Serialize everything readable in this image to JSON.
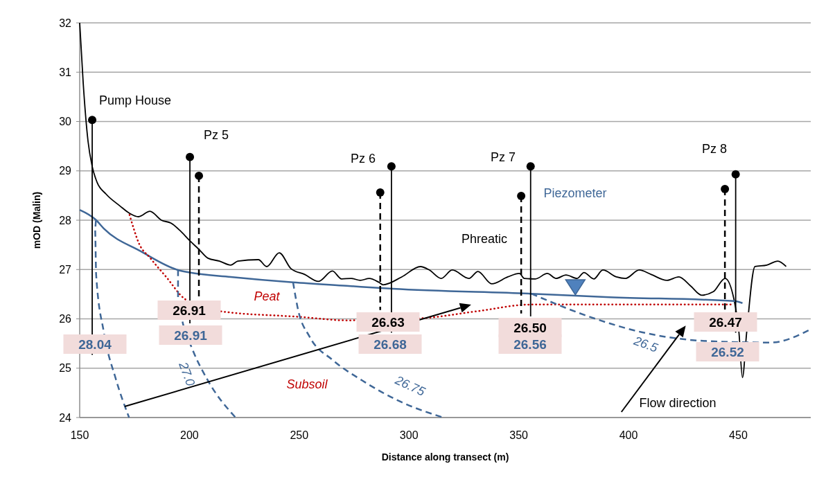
{
  "chart_data": {
    "type": "line",
    "xlabel": "Distance along transect (m)",
    "ylabel": "mOD (Malin)",
    "xlim": [
      150,
      483
    ],
    "xticks": [
      150,
      200,
      250,
      300,
      350,
      400,
      450
    ],
    "ylim": [
      24,
      32
    ],
    "yticks": [
      24,
      25,
      26,
      27,
      28,
      29,
      30,
      31,
      32
    ],
    "grid": "y",
    "series": [
      {
        "color": "#000000",
        "line_style": "solid",
        "marker": "none",
        "x": [
          150,
          151.6,
          153.8,
          155.7,
          157.9,
          162,
          168.3,
          172.7,
          176.8,
          182,
          187.2,
          191.6,
          195.7,
          200,
          204.3,
          208.4,
          213.7,
          218.8,
          222,
          231.4,
          235.2,
          240.9,
          246.2,
          252.5,
          258.8,
          265.1,
          269.3,
          273.7,
          277.8,
          281.9,
          286.3,
          288.2,
          296.7,
          305.2,
          309.3,
          314.7,
          319.7,
          327.3,
          331.4,
          337.7,
          345,
          350.3,
          352.5,
          357.6,
          363,
          367,
          371.5,
          376.6,
          379.7,
          384.2,
          388.3,
          394.5,
          398.6,
          404.9,
          410.3,
          417.5,
          422.9,
          428.2,
          433.3,
          438.6,
          444,
          448.1,
          450.3,
          451.9,
          453.8,
          457.6,
          463,
          468,
          471.8
        ],
        "values": [
          32,
          30.78,
          29.6,
          29.09,
          28.77,
          28.53,
          28.29,
          28.14,
          28.07,
          28.18,
          28.0,
          27.94,
          27.79,
          27.59,
          27.41,
          27.23,
          27.17,
          27.09,
          27.17,
          27.2,
          27.06,
          27.34,
          27.02,
          26.9,
          26.76,
          26.97,
          26.81,
          26.82,
          26.78,
          26.82,
          26.74,
          26.69,
          26.85,
          27.06,
          26.99,
          26.82,
          26.99,
          26.82,
          26.96,
          26.71,
          26.85,
          26.92,
          26.82,
          26.81,
          26.92,
          26.82,
          26.89,
          26.82,
          26.94,
          26.81,
          26.99,
          26.85,
          26.82,
          26.99,
          26.9,
          26.78,
          26.85,
          26.67,
          26.48,
          26.55,
          26.82,
          26.38,
          25.72,
          24.81,
          25.72,
          27.06,
          27.09,
          27.17,
          27.06
        ]
      },
      {
        "color": "#3f6797",
        "line_style": "solid",
        "marker": "none",
        "x": [
          150,
          157.3,
          161,
          177.8,
          194.8,
          200,
          218.8,
          247.2,
          271.5,
          292.6,
          355.7,
          391.3,
          448,
          451.9
        ],
        "values": [
          28.21,
          28.01,
          27.83,
          27.37,
          26.99,
          26.94,
          26.85,
          26.74,
          26.67,
          26.61,
          26.51,
          26.44,
          26.36,
          26.32
        ]
      },
      {
        "color": "#c00000",
        "line_style": "dotted",
        "marker": "none",
        "x": [
          172.7,
          174.6,
          176.8,
          182.2,
          189.4,
          198,
          214.7,
          250.3,
          271.5,
          305.2,
          330.4,
          355.7,
          391.3,
          448.1
        ],
        "values": [
          28.11,
          27.83,
          27.55,
          27.23,
          26.85,
          26.4,
          26.15,
          26.04,
          25.97,
          26.01,
          26.15,
          26.29,
          26.29,
          26.29
        ]
      },
      {
        "color": "#3f6797",
        "line_style": "dashed",
        "marker": "none",
        "x": [
          157.4,
          157,
          157.5,
          161,
          166.4,
          172.5
        ],
        "values": [
          28.0,
          27.83,
          26.89,
          25.73,
          24.79,
          24.0
        ]
      },
      {
        "color": "#3f6797",
        "line_style": "dashed",
        "marker": "none",
        "x": [
          194.8,
          194.8,
          196.7,
          201.1,
          208.4,
          221
        ],
        "values": [
          26.99,
          26.43,
          25.97,
          25.41,
          24.75,
          24.0
        ]
      },
      {
        "color": "#3f6797",
        "line_style": "dashed",
        "marker": "none",
        "x": [
          247.2,
          249.4,
          254.7,
          265.1,
          278.7,
          295.7,
          315.6
        ],
        "values": [
          26.74,
          26.2,
          25.64,
          25.17,
          24.75,
          24.33,
          24.0
        ]
      },
      {
        "color": "#3f6797",
        "line_style": "dashed",
        "marker": "none",
        "x": [
          355.7,
          385,
          406,
          435.5,
          464.8,
          483
        ],
        "values": [
          26.51,
          26.0,
          25.73,
          25.55,
          25.52,
          25.79
        ]
      },
      {
        "color": "#000000",
        "line_style": "solid",
        "marker": "none",
        "x": [
          155.7,
          155.7
        ],
        "values": [
          30.03,
          25.27
        ]
      },
      {
        "color": "#000000",
        "line_style": "solid",
        "marker": "none",
        "x": [
          200.2,
          200.2
        ],
        "values": [
          29.28,
          25.91
        ]
      },
      {
        "color": "#000000",
        "line_style": "dashed",
        "marker": "none",
        "x": [
          204.3,
          204.3
        ],
        "values": [
          28.9,
          26.43
        ]
      },
      {
        "color": "#000000",
        "line_style": "dashed",
        "marker": "none",
        "x": [
          286.9,
          286.9
        ],
        "values": [
          28.56,
          26.18
        ]
      },
      {
        "color": "#000000",
        "line_style": "solid",
        "marker": "none",
        "x": [
          292,
          292
        ],
        "values": [
          29.09,
          25.72
        ]
      },
      {
        "color": "#000000",
        "line_style": "dashed",
        "marker": "none",
        "x": [
          351.1,
          351.1
        ],
        "values": [
          28.49,
          26.11
        ]
      },
      {
        "color": "#000000",
        "line_style": "solid",
        "marker": "none",
        "x": [
          355.4,
          355.4
        ],
        "values": [
          29.09,
          26.05
        ]
      },
      {
        "color": "#000000",
        "line_style": "dashed",
        "marker": "none",
        "x": [
          443.9,
          443.9
        ],
        "values": [
          28.63,
          26.15
        ]
      },
      {
        "color": "#000000",
        "line_style": "solid",
        "marker": "none",
        "x": [
          448.8,
          448.8
        ],
        "values": [
          28.93,
          25.72
        ]
      },
      {
        "type": "scatter",
        "color": "#000000",
        "marker": "circle",
        "x": [
          155.7,
          200.2,
          204.3,
          286.9,
          292,
          351.1,
          355.4,
          443.9,
          448.8
        ],
        "values": [
          30.03,
          29.28,
          28.9,
          28.56,
          29.09,
          28.49,
          29.09,
          28.63,
          28.93
        ]
      }
    ],
    "annotations": [
      "Pump House",
      "Pz 5",
      "Pz 6",
      "Pz 7",
      "Pz 8",
      "Piezometer",
      "Phreatic",
      "Peat",
      "Subsoil",
      "27.0",
      "26.75",
      "26.5",
      "Flow direction",
      "28.04",
      "26.91",
      "26.91",
      "26.63",
      "26.68",
      "26.50",
      "26.56",
      "26.47",
      "26.52"
    ]
  }
}
